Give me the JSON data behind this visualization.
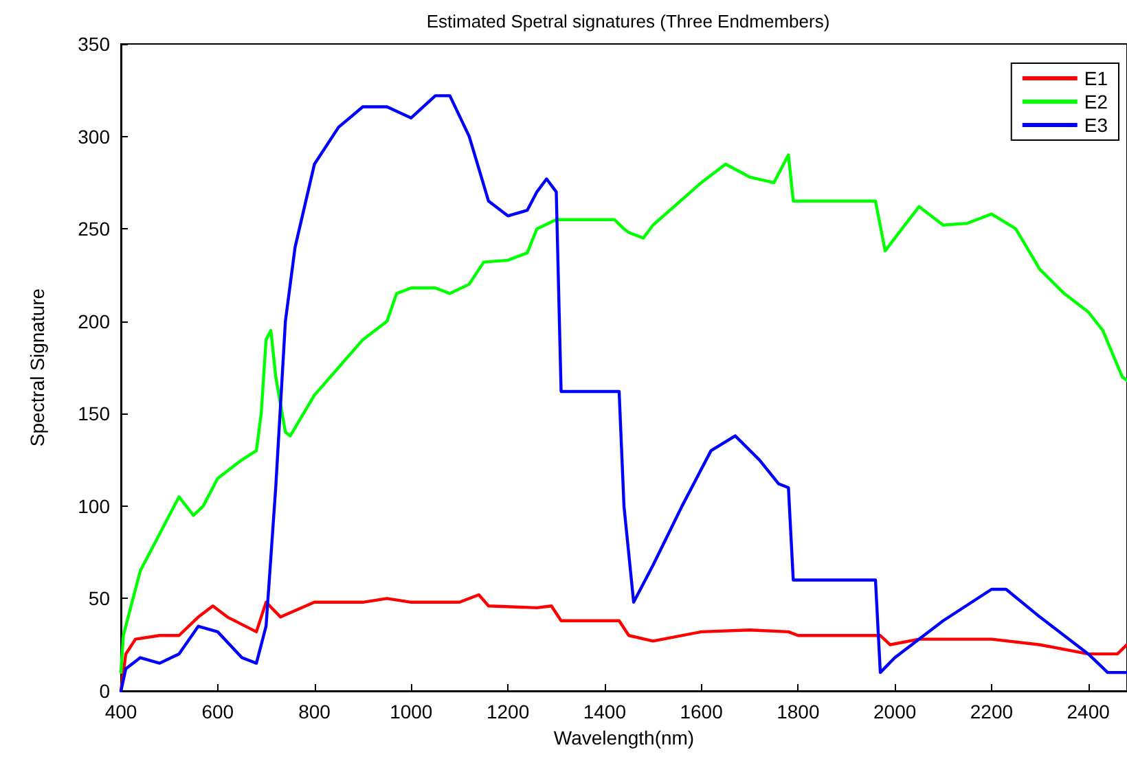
{
  "chart_data": {
    "type": "line",
    "title": "Estimated Spetral signatures (Three Endmembers)",
    "xlabel": "Wavelength(nm)",
    "ylabel": "Spectral Signature",
    "xlim": [
      400,
      2480
    ],
    "xticks": [
      400,
      600,
      800,
      1000,
      1200,
      1400,
      1600,
      1800,
      2000,
      2200,
      2400
    ],
    "ylim": [
      0,
      350
    ],
    "yticks": [
      0,
      50,
      100,
      150,
      200,
      250,
      300,
      350
    ],
    "grid": false,
    "legend": "top right",
    "marker": "none",
    "line_style": "solid",
    "series": [
      {
        "name": "E1",
        "color": "#ff0000",
        "x": [
          400,
          410,
          430,
          480,
          520,
          560,
          590,
          620,
          680,
          700,
          730,
          800,
          900,
          950,
          1000,
          1100,
          1140,
          1160,
          1260,
          1290,
          1310,
          1430,
          1450,
          1500,
          1600,
          1700,
          1780,
          1800,
          1970,
          1990,
          2050,
          2200,
          2300,
          2400,
          2460,
          2480
        ],
        "values": [
          0,
          20,
          28,
          30,
          30,
          40,
          46,
          40,
          32,
          48,
          40,
          48,
          48,
          50,
          48,
          48,
          52,
          46,
          45,
          46,
          38,
          38,
          30,
          27,
          32,
          33,
          32,
          30,
          30,
          25,
          28,
          28,
          25,
          20,
          20,
          25
        ]
      },
      {
        "name": "E2",
        "color": "#00ff00",
        "x": [
          400,
          405,
          420,
          440,
          470,
          500,
          520,
          550,
          570,
          600,
          650,
          680,
          690,
          700,
          710,
          720,
          740,
          750,
          800,
          850,
          900,
          950,
          970,
          1000,
          1050,
          1080,
          1120,
          1150,
          1200,
          1240,
          1260,
          1300,
          1420,
          1440,
          1450,
          1480,
          1500,
          1600,
          1650,
          1700,
          1750,
          1780,
          1790,
          1960,
          1980,
          2000,
          2050,
          2100,
          2150,
          2200,
          2250,
          2300,
          2350,
          2400,
          2430,
          2470,
          2480
        ],
        "values": [
          10,
          30,
          45,
          65,
          80,
          95,
          105,
          95,
          100,
          115,
          125,
          130,
          150,
          190,
          195,
          170,
          140,
          138,
          160,
          175,
          190,
          200,
          215,
          218,
          218,
          215,
          220,
          232,
          233,
          237,
          250,
          255,
          255,
          250,
          248,
          245,
          252,
          275,
          285,
          278,
          275,
          290,
          265,
          265,
          238,
          245,
          262,
          252,
          253,
          258,
          250,
          228,
          215,
          205,
          195,
          170,
          168
        ]
      },
      {
        "name": "E3",
        "color": "#0000ff",
        "x": [
          400,
          410,
          440,
          480,
          520,
          560,
          600,
          650,
          680,
          700,
          720,
          740,
          760,
          800,
          850,
          900,
          950,
          1000,
          1050,
          1080,
          1120,
          1160,
          1200,
          1240,
          1260,
          1280,
          1300,
          1310,
          1430,
          1440,
          1460,
          1500,
          1560,
          1620,
          1670,
          1720,
          1760,
          1780,
          1790,
          1960,
          1970,
          2000,
          2100,
          2200,
          2230,
          2300,
          2400,
          2440,
          2480
        ],
        "values": [
          0,
          12,
          18,
          15,
          20,
          35,
          32,
          18,
          15,
          35,
          110,
          200,
          240,
          285,
          305,
          316,
          316,
          310,
          322,
          322,
          300,
          265,
          257,
          260,
          270,
          277,
          270,
          162,
          162,
          100,
          48,
          68,
          100,
          130,
          138,
          125,
          112,
          110,
          60,
          60,
          10,
          18,
          38,
          55,
          55,
          40,
          20,
          10,
          10
        ]
      }
    ]
  }
}
